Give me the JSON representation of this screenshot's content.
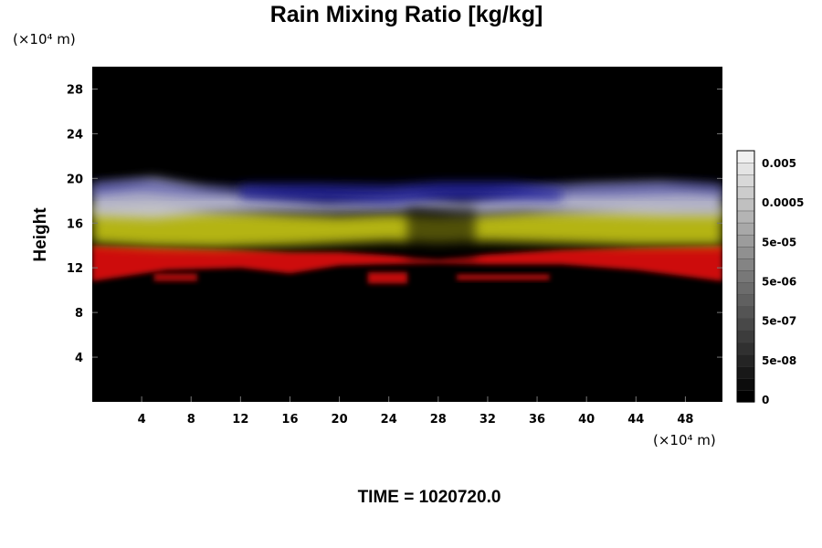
{
  "chart_data": {
    "type": "heatmap",
    "title": "Rain Mixing Ratio [kg/kg]",
    "ylabel": "Height",
    "xlabel": "",
    "x_unit": "(×10⁴ m)",
    "y_unit": "(×10⁴ m)",
    "xlim": [
      0,
      51
    ],
    "ylim": [
      0,
      30
    ],
    "x_ticks": [
      "4",
      "8",
      "12",
      "16",
      "20",
      "24",
      "28",
      "32",
      "36",
      "40",
      "44",
      "48"
    ],
    "x_tick_values": [
      4,
      8,
      12,
      16,
      20,
      24,
      28,
      32,
      36,
      40,
      44,
      48
    ],
    "y_ticks": [
      "4",
      "8",
      "12",
      "16",
      "20",
      "24",
      "28"
    ],
    "y_tick_values": [
      4,
      8,
      12,
      16,
      20,
      24,
      28
    ],
    "grid": false,
    "background_color": "#000000",
    "bands": [
      {
        "name": "red",
        "color": "#d81010",
        "y_from": 10.8,
        "y_to": 14.2,
        "x_from": 0,
        "x_to": 51
      },
      {
        "name": "yellow",
        "color": "#c8c818",
        "y_from": 13.8,
        "y_to": 17.6,
        "x_from": 0,
        "x_to": 51
      },
      {
        "name": "white",
        "color": "#c8c8e8",
        "y_from": 16.5,
        "y_to": 20.0,
        "x_from": 0,
        "x_to": 51
      },
      {
        "name": "blue",
        "color": "#2828a0",
        "y_from": 17.6,
        "y_to": 20.0,
        "x_from": 0,
        "x_to": 51
      }
    ],
    "colorbar": {
      "labels": [
        "0.005",
        "0.0005",
        "5e-05",
        "5e-06",
        "5e-07",
        "5e-08",
        "0"
      ],
      "levels": 21,
      "color_low": "#000000",
      "color_high": "#f0f0f0"
    }
  },
  "time_label": "TIME = 1020720.0"
}
